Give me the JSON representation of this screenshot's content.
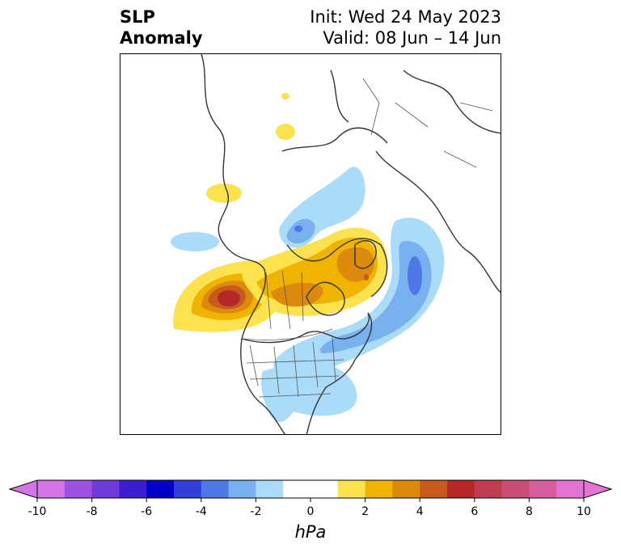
{
  "title": {
    "left_line1": "SLP",
    "left_line2": "Anomaly",
    "right_line1": "Init: Wed 24 May 2023",
    "right_line2": "Valid: 08 Jun – 14 Jun"
  },
  "colorbar": {
    "unit_label": "hPa",
    "ticks": [
      "-10",
      "-8",
      "-6",
      "-4",
      "-2",
      "0",
      "2",
      "4",
      "6",
      "8",
      "10"
    ],
    "levels": [
      -10,
      -9,
      -8,
      -7,
      -6,
      -5,
      -4,
      -3,
      -2,
      -1,
      1,
      2,
      3,
      4,
      5,
      6,
      7,
      8,
      9,
      10
    ],
    "colors": [
      "#d574e6",
      "#9f52e0",
      "#6f3bd8",
      "#3c1ed0",
      "#0000c8",
      "#2f3fd8",
      "#4e78e6",
      "#78b0f0",
      "#aadbf8",
      "#ffffff",
      "#fce24f",
      "#f0b400",
      "#dc8a0e",
      "#c85a1e",
      "#b42828",
      "#c03c50",
      "#cc4c78",
      "#d85ca0",
      "#e474d4"
    ],
    "under_color": "#d574e6",
    "over_color": "#e474d4"
  },
  "map": {
    "projection": "north-polar-stereographic",
    "features": [
      "coastlines",
      "country-borders",
      "state-borders"
    ],
    "anomaly_centers": [
      {
        "name": "positive-anomaly-pacific-nw",
        "sign": "positive",
        "max_hpa": 6
      },
      {
        "name": "positive-anomaly-greenland",
        "sign": "positive",
        "max_hpa": 5
      },
      {
        "name": "positive-anomaly-canada",
        "sign": "positive",
        "max_hpa": 4
      },
      {
        "name": "negative-anomaly-north-atlantic",
        "sign": "negative",
        "max_hpa": -4
      },
      {
        "name": "negative-anomaly-eastern-us",
        "sign": "negative",
        "max_hpa": -2
      },
      {
        "name": "negative-anomaly-arctic",
        "sign": "negative",
        "max_hpa": -3
      }
    ]
  }
}
